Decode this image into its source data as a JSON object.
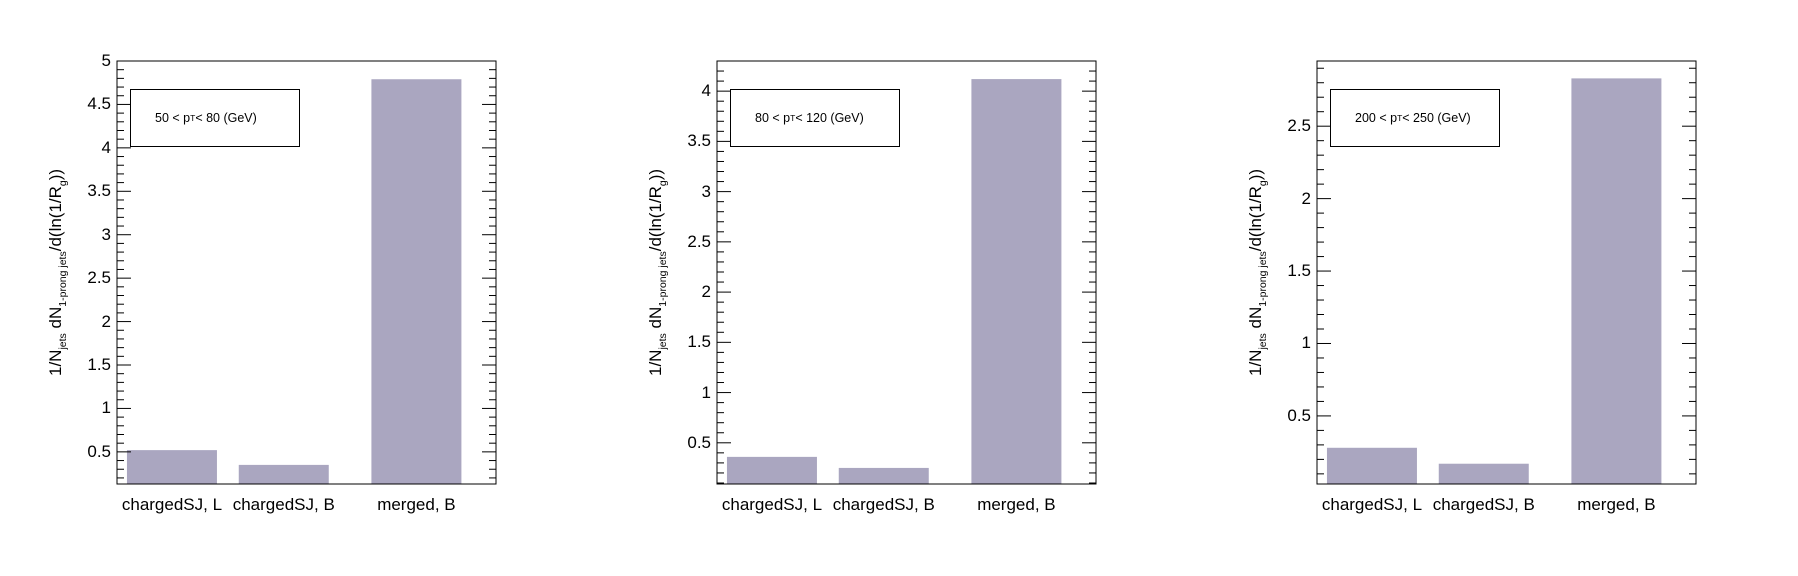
{
  "styles": {
    "bar_color": "#aaa6c0",
    "axis_color": "#000000"
  },
  "ylabel": {
    "prefix": "1/N",
    "jets_sub": "jets",
    "mid": " dN",
    "prong_sub": "1-prong jets",
    "rest": "/d(ln(1/R",
    "g_sub": "g",
    "end": "))"
  },
  "chart_data": [
    {
      "type": "bar",
      "legend": {
        "pre": "50 < p",
        "sub": "T",
        "post": " < 80 (GeV)"
      },
      "categories": [
        "chargedSJ, L",
        "chargedSJ, B",
        "merged, B"
      ],
      "values": [
        0.52,
        0.35,
        4.79
      ],
      "ylim": [
        0.13,
        5.0
      ],
      "yticks": [
        0.5,
        1,
        1.5,
        2,
        2.5,
        3,
        3.5,
        4,
        4.5,
        5
      ],
      "ytick_labels": [
        "0.5",
        "1",
        "1.5",
        "2",
        "2.5",
        "3",
        "3.5",
        "4",
        "4.5",
        "5"
      ]
    },
    {
      "type": "bar",
      "legend": {
        "pre": "80 < p",
        "sub": "T",
        "post": " < 120 (GeV)"
      },
      "categories": [
        "chargedSJ, L",
        "chargedSJ, B",
        "merged, B"
      ],
      "values": [
        0.36,
        0.25,
        4.12
      ],
      "ylim": [
        0.09,
        4.3
      ],
      "yticks": [
        0.5,
        1,
        1.5,
        2,
        2.5,
        3,
        3.5,
        4
      ],
      "ytick_labels": [
        "0.5",
        "1",
        "1.5",
        "2",
        "2.5",
        "3",
        "3.5",
        "4"
      ]
    },
    {
      "type": "bar",
      "legend": {
        "pre": "200 < p",
        "sub": "T",
        "post": " < 250 (GeV)"
      },
      "categories": [
        "chargedSJ, L",
        "chargedSJ, B",
        "merged, B"
      ],
      "values": [
        0.28,
        0.17,
        2.83
      ],
      "ylim": [
        0.03,
        2.95
      ],
      "yticks": [
        0.5,
        1,
        1.5,
        2,
        2.5
      ],
      "ytick_labels": [
        "0.5",
        "1",
        "1.5",
        "2",
        "2.5"
      ]
    }
  ]
}
